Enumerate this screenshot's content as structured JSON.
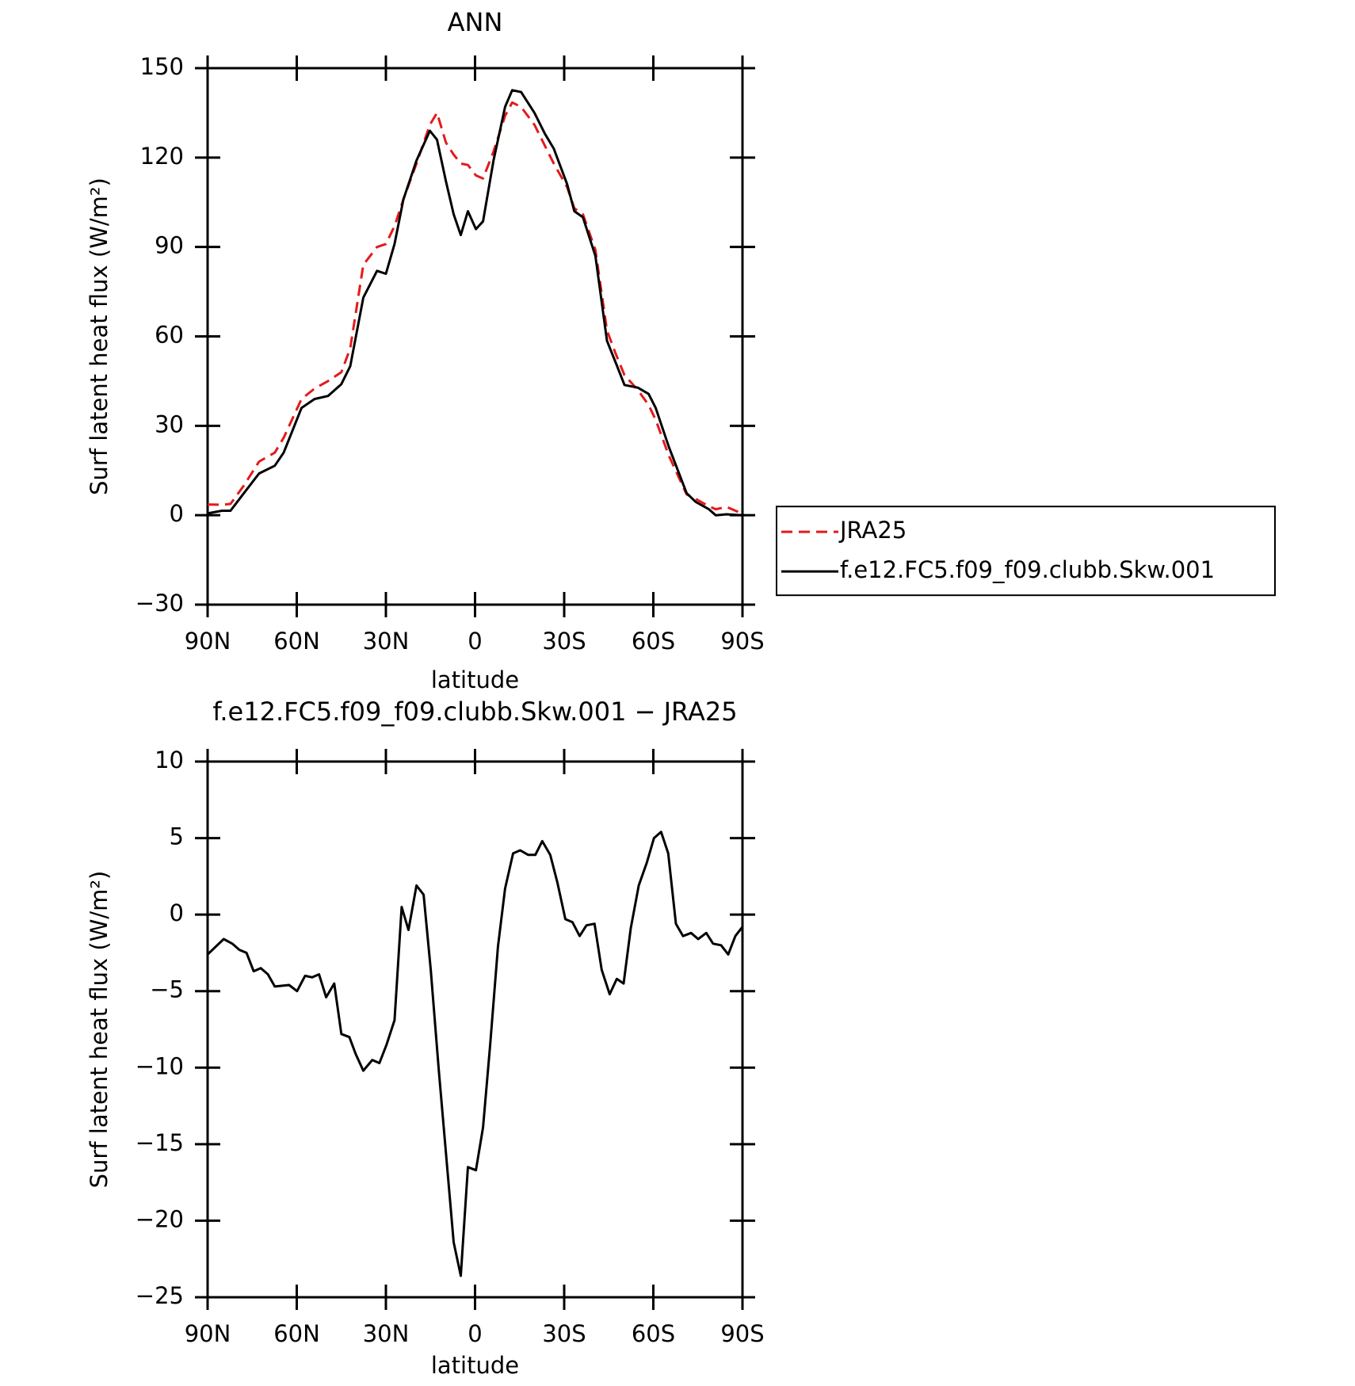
{
  "chart_data": [
    {
      "type": "line",
      "title": "ANN",
      "xlabel": "latitude",
      "ylabel": "Surf latent heat flux (W/m²)",
      "x": [
        90,
        85.2,
        82.3,
        77.8,
        72.7,
        67.4,
        64.4,
        58.4,
        54,
        49.5,
        45,
        42,
        37.6,
        33,
        30,
        27.1,
        24.1,
        19.7,
        15.2,
        12.8,
        9.8,
        7.2,
        4.8,
        2.4,
        -0.3,
        -2.7,
        -6.2,
        -10.1,
        -12.5,
        -15.5,
        -20,
        -23.5,
        -26.5,
        -31,
        -33.4,
        -36.3,
        -40.5,
        -44.4,
        -47.4,
        -50.3,
        -54.8,
        -58.4,
        -60.8,
        -65.2,
        -71.2,
        -74.2,
        -78.7,
        -81,
        -84.6,
        -90
      ],
      "series": [
        {
          "name": "JRA25",
          "color": "#e41a1c",
          "line_style": "dashed",
          "values": [
            3.6,
            3.5,
            3.8,
            10,
            18,
            21,
            26,
            39,
            42.5,
            45,
            48,
            56,
            84,
            90,
            91,
            97,
            106,
            118,
            131,
            135,
            125,
            121,
            118,
            117.5,
            114,
            113,
            122,
            134,
            138.5,
            137,
            131,
            124,
            118,
            110,
            103,
            101,
            89,
            62,
            54,
            47,
            42,
            37,
            32,
            20,
            7,
            5.5,
            3,
            2,
            2.8,
            0.5
          ]
        },
        {
          "name": "f.e12.FC5.f09_f09.clubb.Skw.001",
          "color": "#000000",
          "line_style": "solid",
          "values": [
            0.6,
            1.5,
            1.5,
            7.4,
            14,
            16.6,
            21,
            36,
            39,
            40,
            44,
            50,
            73,
            82,
            81,
            91,
            106,
            119,
            129,
            126,
            112,
            101,
            94,
            102,
            96,
            98.6,
            119,
            137,
            142.6,
            142,
            135,
            128,
            123,
            111,
            102,
            100,
            87,
            58.5,
            51,
            43.7,
            42.8,
            40.7,
            36,
            23,
            7.4,
            4.5,
            2,
            0,
            0.3,
            0
          ]
        }
      ],
      "xlim": [
        90,
        -90
      ],
      "xticks": [
        {
          "value": 90,
          "label": "90N"
        },
        {
          "value": 60,
          "label": "60N"
        },
        {
          "value": 30,
          "label": "30N"
        },
        0,
        {
          "value": -30,
          "label": "30S"
        },
        {
          "value": -60,
          "label": "60S"
        },
        {
          "value": -90,
          "label": "90S"
        }
      ],
      "ylim": [
        -30,
        150
      ],
      "yticks": [
        {
          "value": -30,
          "label": "−30"
        },
        0,
        30,
        60,
        90,
        120,
        150
      ],
      "legend": "right"
    },
    {
      "type": "line",
      "title": "f.e12.FC5.f09_f09.clubb.Skw.001 − JRA25",
      "xlabel": "latitude",
      "ylabel": "Surf latent heat flux (W/m²)",
      "x": [
        90,
        84.6,
        81.7,
        79.3,
        76.9,
        74.5,
        72.1,
        69.7,
        67.4,
        62.6,
        59.9,
        57.2,
        54.8,
        52.5,
        50.1,
        47.4,
        45,
        42.3,
        40.2,
        37.6,
        34.6,
        32.2,
        29.8,
        27.1,
        24.7,
        22.4,
        19.7,
        17.3,
        14.9,
        12.2,
        9.2,
        7.2,
        4.8,
        2.4,
        -0.3,
        -2.7,
        -5.1,
        -7.7,
        -10.1,
        -12.8,
        -15.2,
        -17.9,
        -20.3,
        -22.6,
        -25.3,
        -27.7,
        -30.4,
        -32.8,
        -35.2,
        -37.5,
        -40.2,
        -42.6,
        -45.3,
        -47.7,
        -50,
        -52.4,
        -55.1,
        -57.8,
        -60.2,
        -62.6,
        -65,
        -67.6,
        -70,
        -72.7,
        -75.1,
        -77.8,
        -80.1,
        -82.8,
        -85.2,
        -87.6,
        -90
      ],
      "series": [
        {
          "color": "#000000",
          "line_style": "solid",
          "values": [
            -2.6,
            -1.6,
            -1.9,
            -2.3,
            -2.5,
            -3.7,
            -3.5,
            -3.9,
            -4.7,
            -4.6,
            -5,
            -4,
            -4.1,
            -3.9,
            -5.4,
            -4.5,
            -7.8,
            -8,
            -9.1,
            -10.2,
            -9.5,
            -9.7,
            -8.5,
            -6.9,
            0.5,
            -1,
            1.9,
            1.3,
            -3.6,
            -10.2,
            -16.9,
            -21.4,
            -23.6,
            -16.5,
            -16.7,
            -13.9,
            -8.5,
            -2.1,
            1.7,
            4,
            4.2,
            3.9,
            3.9,
            4.8,
            3.9,
            2.1,
            -0.3,
            -0.5,
            -1.4,
            -0.7,
            -0.6,
            -3.6,
            -5.2,
            -4.2,
            -4.5,
            -0.9,
            1.9,
            3.4,
            5,
            5.4,
            4,
            -0.6,
            -1.4,
            -1.2,
            -1.6,
            -1.2,
            -1.9,
            -2,
            -2.6,
            -1.4,
            -0.8
          ]
        }
      ],
      "xlim": [
        90,
        -90
      ],
      "xticks": [
        {
          "value": 90,
          "label": "90N"
        },
        {
          "value": 60,
          "label": "60N"
        },
        {
          "value": 30,
          "label": "30N"
        },
        0,
        {
          "value": -30,
          "label": "30S"
        },
        {
          "value": -60,
          "label": "60S"
        },
        {
          "value": -90,
          "label": "90S"
        }
      ],
      "ylim": [
        -25,
        10
      ],
      "yticks": [
        {
          "value": -25,
          "label": "−25"
        },
        {
          "value": -20,
          "label": "−20"
        },
        {
          "value": -15,
          "label": "−15"
        },
        {
          "value": -10,
          "label": "−10"
        },
        {
          "value": -5,
          "label": "−5"
        },
        0,
        5,
        10
      ]
    }
  ]
}
